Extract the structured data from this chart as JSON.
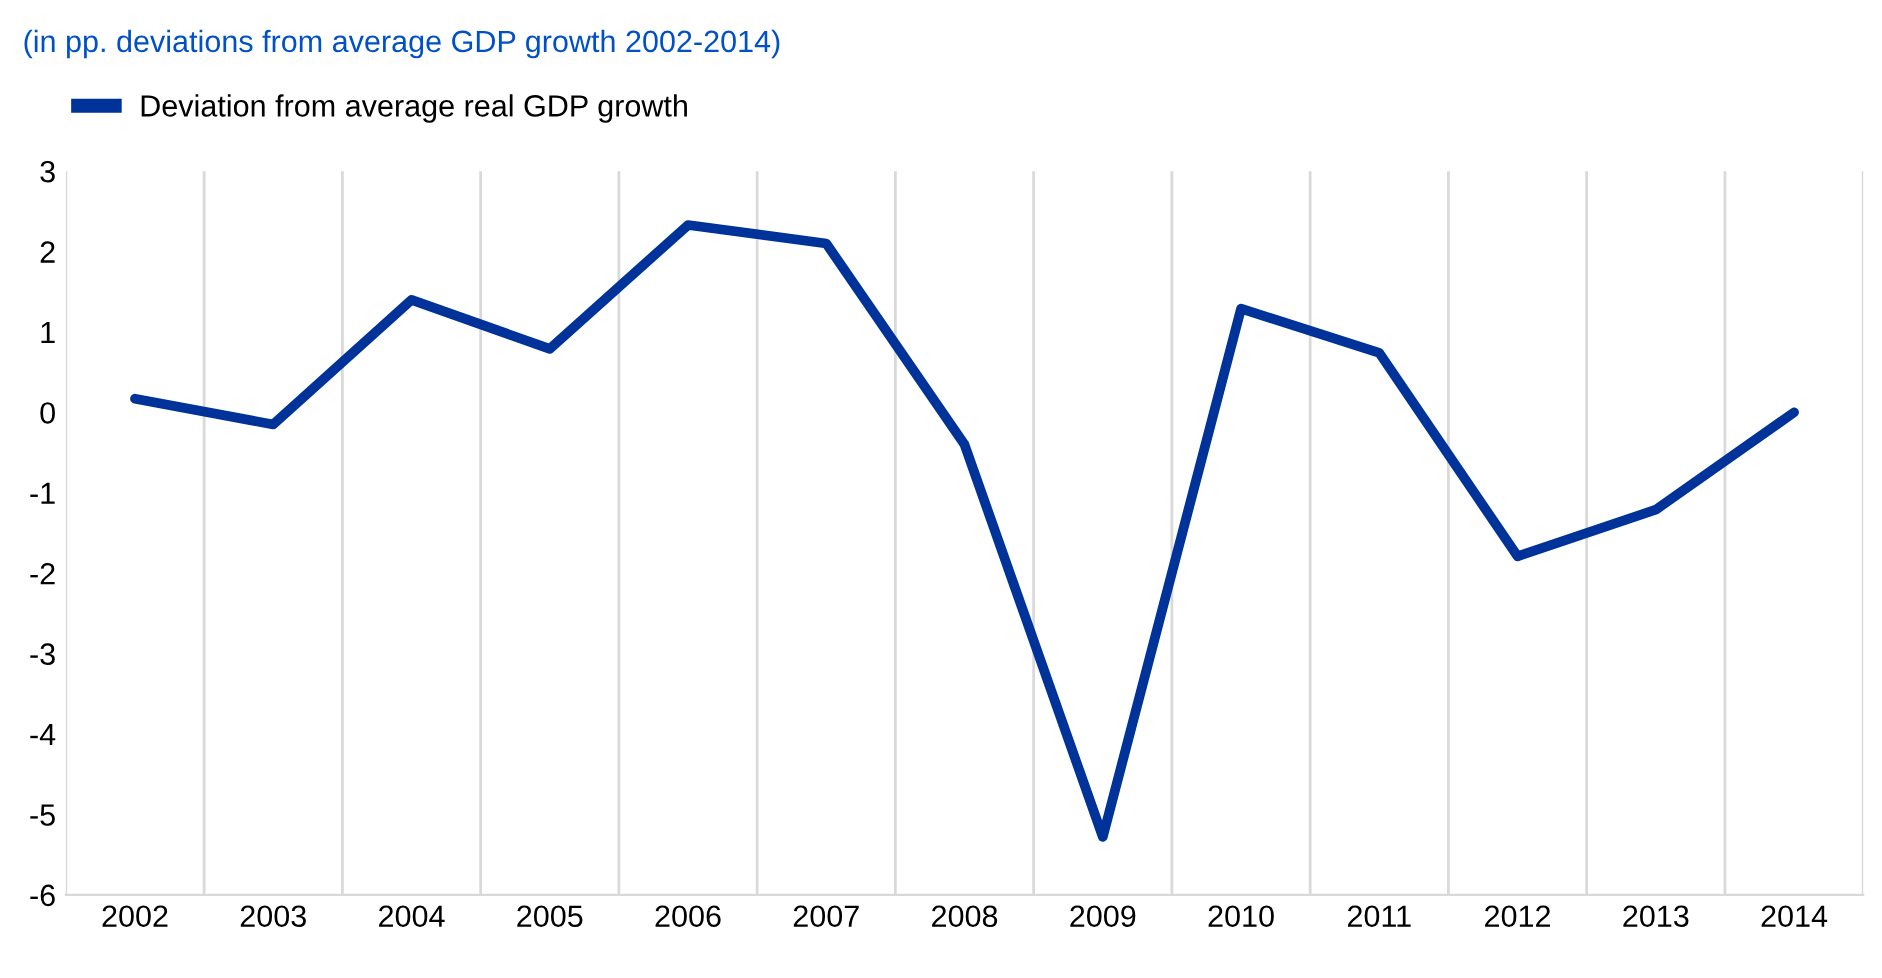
{
  "chart_data": {
    "type": "line",
    "subtitle": "(in pp. deviations from average GDP growth 2002-2014)",
    "categories": [
      "2002",
      "2003",
      "2004",
      "2005",
      "2006",
      "2007",
      "2008",
      "2009",
      "2010",
      "2011",
      "2012",
      "2013",
      "2014"
    ],
    "series": [
      {
        "name": "Deviation from average real GDP growth",
        "color": "#003399",
        "values": [
          0.17,
          -0.15,
          1.4,
          0.79,
          2.33,
          2.1,
          -0.4,
          -5.28,
          1.29,
          0.74,
          -1.79,
          -1.21,
          0.0
        ]
      }
    ],
    "ylim": [
      -6,
      3
    ],
    "yticks": [
      -6,
      -5,
      -4,
      -3,
      -2,
      -1,
      0,
      1,
      2,
      3
    ],
    "grid": "x",
    "legend": "top left",
    "marker": "none",
    "line_style": "solid"
  }
}
